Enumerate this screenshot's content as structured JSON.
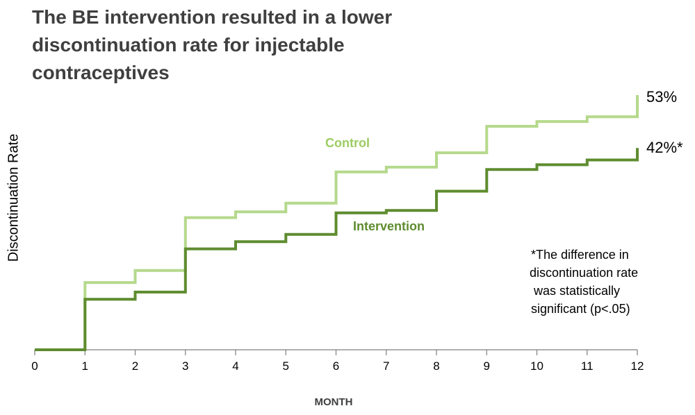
{
  "title": "The BE intervention resulted in a lower discontinuation rate for injectable contraceptives",
  "chart_data": {
    "type": "line",
    "step": true,
    "title": "The BE intervention resulted in a lower discontinuation rate for injectable contraceptives",
    "xlabel": "MONTH",
    "ylabel": "Discontinuation Rate",
    "x": [
      0,
      1,
      2,
      3,
      4,
      5,
      6,
      7,
      8,
      9,
      10,
      11,
      12
    ],
    "x_ticks": [
      "0",
      "1",
      "2",
      "3",
      "4",
      "5",
      "6",
      "7",
      "8",
      "9",
      "10",
      "11",
      "12"
    ],
    "xlim": [
      0,
      12
    ],
    "ylim": [
      0,
      0.53
    ],
    "y_axis_visible": false,
    "grid": false,
    "series": [
      {
        "name": "Control",
        "color": "#b5d98c",
        "values": [
          0,
          0.14,
          0.165,
          0.275,
          0.287,
          0.305,
          0.37,
          0.38,
          0.41,
          0.465,
          0.475,
          0.485,
          0.53
        ],
        "end_label": "53%"
      },
      {
        "name": "Intervention",
        "color": "#5e8c2f",
        "values": [
          0,
          0.105,
          0.12,
          0.21,
          0.225,
          0.24,
          0.285,
          0.29,
          0.33,
          0.375,
          0.385,
          0.395,
          0.42
        ],
        "end_label": "42%*"
      }
    ],
    "annotation": [
      "*The difference in",
      "discontinuation rate",
      "was statistically",
      "significant (p<.05)"
    ]
  }
}
